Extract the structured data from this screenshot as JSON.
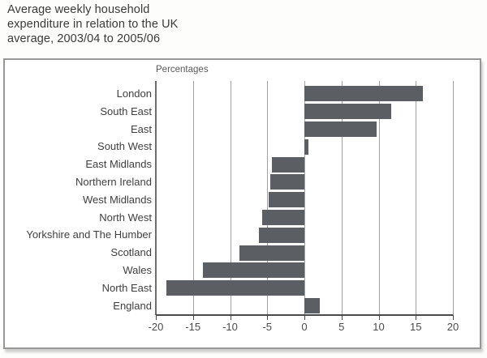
{
  "header": {
    "title_lines": [
      "Average weekly household",
      "expenditure in relation to the UK",
      "average, 2003/04 to 2005/06"
    ]
  },
  "chart": {
    "unit_label": "Percentages"
  },
  "chart_data": {
    "type": "bar",
    "orientation": "horizontal",
    "title": "Average weekly household expenditure in relation to the UK average, 2003/04 to 2005/06",
    "unit_label": "Percentages",
    "categories": [
      "London",
      "South East",
      "East",
      "South West",
      "East Midlands",
      "Northern Ireland",
      "West Midlands",
      "North West",
      "Yorkshire and The Humber",
      "Scotland",
      "Wales",
      "North East",
      "England"
    ],
    "values": [
      16.0,
      11.7,
      9.7,
      0.5,
      -4.4,
      -4.6,
      -4.8,
      -5.7,
      -6.1,
      -8.7,
      -13.7,
      -18.6,
      2.1
    ],
    "xlabel": "",
    "ylabel": "",
    "xlim": [
      -20,
      20
    ],
    "x_ticks": [
      -20,
      -15,
      -10,
      -5,
      0,
      5,
      10,
      15,
      20
    ],
    "grid": true,
    "legend": "none",
    "bar_color": "#5b5e62",
    "gridline_color": "#a0a0a0",
    "axis_color": "#4a4a4a",
    "frame_border_color": "#979797",
    "title_color": "#3a3a3a"
  }
}
